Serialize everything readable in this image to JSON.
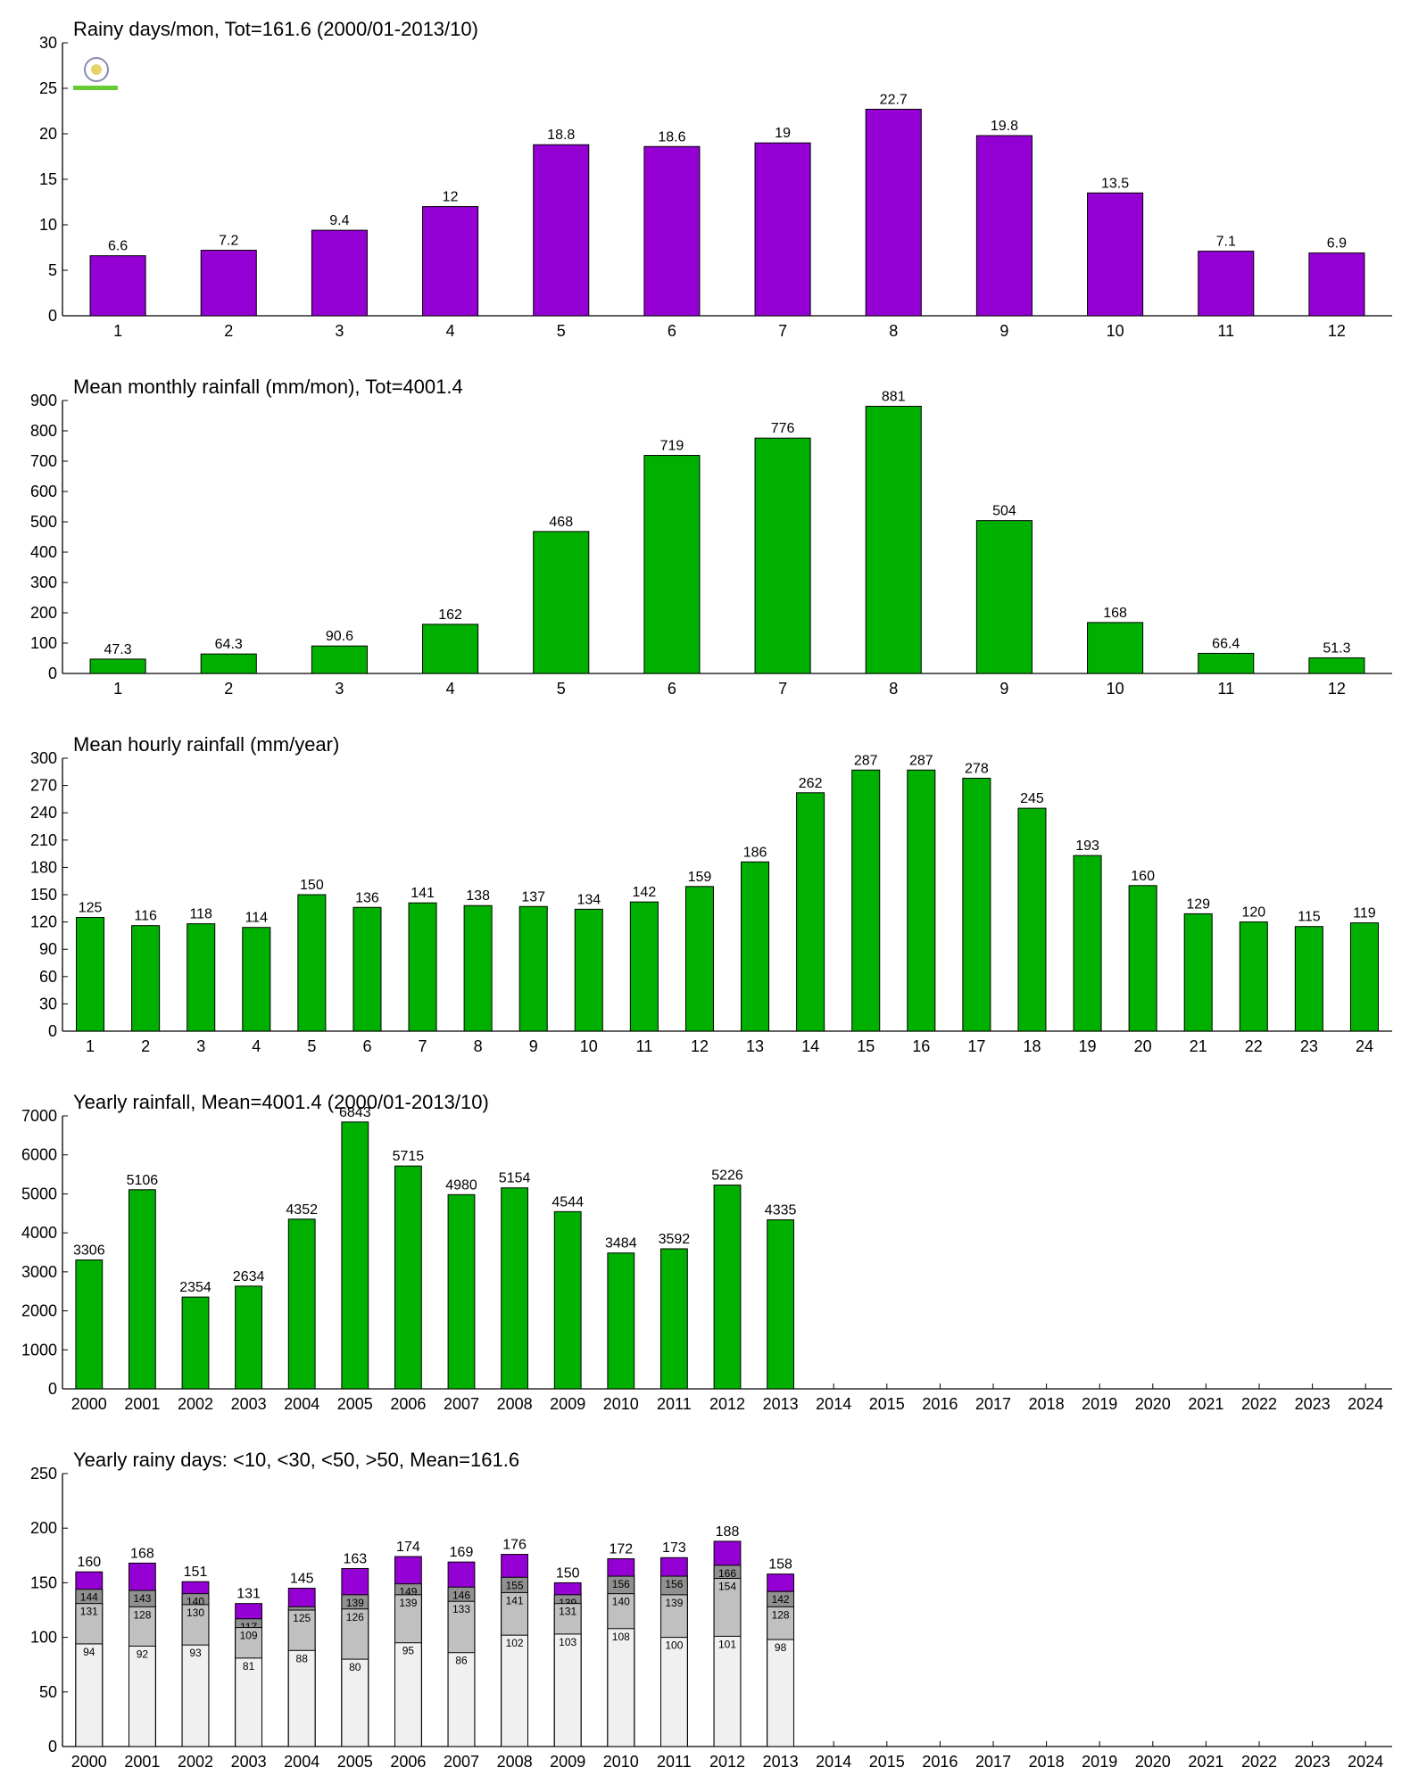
{
  "chart_data": [
    {
      "type": "bar",
      "title": "Rainy days/mon, Tot=161.6 (2000/01-2013/10)",
      "categories": [
        1,
        2,
        3,
        4,
        5,
        6,
        7,
        8,
        9,
        10,
        11,
        12
      ],
      "values": [
        6.6,
        7.2,
        9.4,
        12,
        18.8,
        18.6,
        19,
        22.7,
        19.8,
        13.5,
        7.1,
        6.9
      ],
      "color": "#9400d3",
      "ylim": [
        0,
        30
      ],
      "yticks": [
        0,
        5,
        10,
        15,
        20,
        25,
        30
      ]
    },
    {
      "type": "bar",
      "title": "Mean monthly rainfall (mm/mon), Tot=4001.4",
      "categories": [
        1,
        2,
        3,
        4,
        5,
        6,
        7,
        8,
        9,
        10,
        11,
        12
      ],
      "values": [
        47.3,
        64.3,
        90.6,
        162,
        468,
        719,
        776,
        881,
        504,
        168,
        66.4,
        51.3
      ],
      "color": "#00b000",
      "ylim": [
        0,
        900
      ],
      "yticks": [
        0,
        100,
        200,
        300,
        400,
        500,
        600,
        700,
        800,
        900
      ]
    },
    {
      "type": "bar",
      "title": "Mean hourly rainfall (mm/year)",
      "categories": [
        1,
        2,
        3,
        4,
        5,
        6,
        7,
        8,
        9,
        10,
        11,
        12,
        13,
        14,
        15,
        16,
        17,
        18,
        19,
        20,
        21,
        22,
        23,
        24
      ],
      "values": [
        125,
        116,
        118,
        114,
        150,
        136,
        141,
        138,
        137,
        134,
        142,
        159,
        186,
        262,
        287,
        287,
        278,
        245,
        193,
        160,
        129,
        120,
        115,
        119
      ],
      "color": "#00b000",
      "ylim": [
        0,
        300
      ],
      "yticks": [
        0,
        30,
        60,
        90,
        120,
        150,
        180,
        210,
        240,
        270,
        300
      ]
    },
    {
      "type": "bar",
      "title": "Yearly rainfall, Mean=4001.4 (2000/01-2013/10)",
      "categories": [
        2000,
        2001,
        2002,
        2003,
        2004,
        2005,
        2006,
        2007,
        2008,
        2009,
        2010,
        2011,
        2012,
        2013,
        2014,
        2015,
        2016,
        2017,
        2018,
        2019,
        2020,
        2021,
        2022,
        2023,
        2024
      ],
      "values": [
        3306,
        5106,
        2354,
        2634,
        4352,
        6843,
        5715,
        4980,
        5154,
        4544,
        3484,
        3592,
        5226,
        4335,
        null,
        null,
        null,
        null,
        null,
        null,
        null,
        null,
        null,
        null,
        null
      ],
      "color": "#00b000",
      "ylim": [
        0,
        7000
      ],
      "yticks": [
        0,
        1000,
        2000,
        3000,
        4000,
        5000,
        6000,
        7000
      ]
    },
    {
      "type": "bar",
      "barmode": "overlay",
      "title": "Yearly rainy days: <10, <30, <50, >50, Mean=161.6",
      "categories": [
        2000,
        2001,
        2002,
        2003,
        2004,
        2005,
        2006,
        2007,
        2008,
        2009,
        2010,
        2011,
        2012,
        2013,
        2014,
        2015,
        2016,
        2017,
        2018,
        2019,
        2020,
        2021,
        2022,
        2023,
        2024
      ],
      "series": [
        {
          "color": "#9400d3",
          "values": [
            160,
            168,
            151,
            131,
            145,
            163,
            174,
            169,
            176,
            150,
            172,
            173,
            188,
            158,
            null,
            null,
            null,
            null,
            null,
            null,
            null,
            null,
            null,
            null,
            null
          ]
        },
        {
          "color": "#909090",
          "values": [
            144,
            143,
            140,
            117,
            128,
            139,
            149,
            146,
            155,
            139,
            156,
            156,
            166,
            142,
            null,
            null,
            null,
            null,
            null,
            null,
            null,
            null,
            null,
            null,
            null
          ]
        },
        {
          "color": "#c0c0c0",
          "values": [
            131,
            128,
            130,
            109,
            125,
            126,
            139,
            133,
            141,
            131,
            140,
            139,
            154,
            128,
            null,
            null,
            null,
            null,
            null,
            null,
            null,
            null,
            null,
            null,
            null
          ]
        },
        {
          "color": "#f0f0f0",
          "values": [
            94,
            92,
            93,
            81,
            88,
            80,
            95,
            86,
            102,
            103,
            108,
            100,
            101,
            98,
            null,
            null,
            null,
            null,
            null,
            null,
            null,
            null,
            null,
            null,
            null
          ]
        }
      ],
      "ylim": [
        0,
        250
      ],
      "yticks": [
        0,
        50,
        100,
        150,
        200,
        250
      ]
    }
  ]
}
